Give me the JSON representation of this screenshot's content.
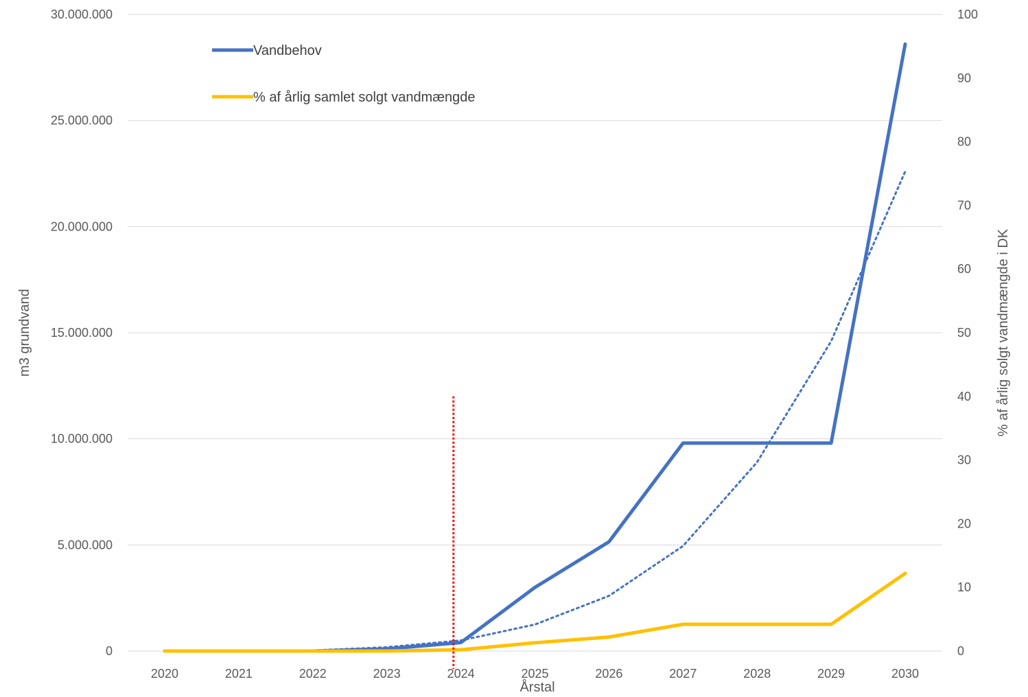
{
  "chart_data": {
    "type": "line",
    "categories": [
      "2020",
      "2021",
      "2022",
      "2023",
      "2024",
      "2025",
      "2026",
      "2027",
      "2028",
      "2029",
      "2030"
    ],
    "xlabel": "Årstal",
    "ylabel_left": "m3 grundvand",
    "ylabel_right": "% af  årlig solgt vandmængde i DK",
    "ylim_left": [
      0,
      30000000
    ],
    "ylim_right": [
      0,
      100
    ],
    "yticks_left": [
      "0",
      "5.000.000",
      "10.000.000",
      "15.000.000",
      "20.000.000",
      "25.000.000",
      "30.000.000"
    ],
    "yticks_right": [
      "0",
      "10",
      "20",
      "30",
      "40",
      "50",
      "60",
      "70",
      "80",
      "90",
      "100"
    ],
    "grid": "horizontal",
    "legend_position": "top-left",
    "series": [
      {
        "name": "Vandbehov",
        "axis": "left",
        "color": "#4472C4",
        "values": [
          0,
          0,
          0,
          100000,
          400000,
          3000000,
          5150000,
          9800000,
          9800000,
          9800000,
          28600000
        ]
      },
      {
        "name": "% af årlig samlet solgt vandmængde",
        "axis": "right",
        "color": "#FFC000",
        "values": [
          0,
          0,
          0,
          0,
          0.2,
          1.3,
          2.2,
          4.2,
          4.2,
          4.2,
          12.2
        ]
      }
    ],
    "trendline": {
      "series": "Vandbehov",
      "style": "dotted",
      "color": "#4472C4",
      "values": [
        0,
        0,
        30000,
        180000,
        500000,
        1250000,
        2600000,
        4950000,
        8900000,
        14600000,
        22600000
      ]
    },
    "marker_line": {
      "x": 2023.9,
      "style": "dotted",
      "color": "#FF0000",
      "y_top": 12000000
    }
  }
}
